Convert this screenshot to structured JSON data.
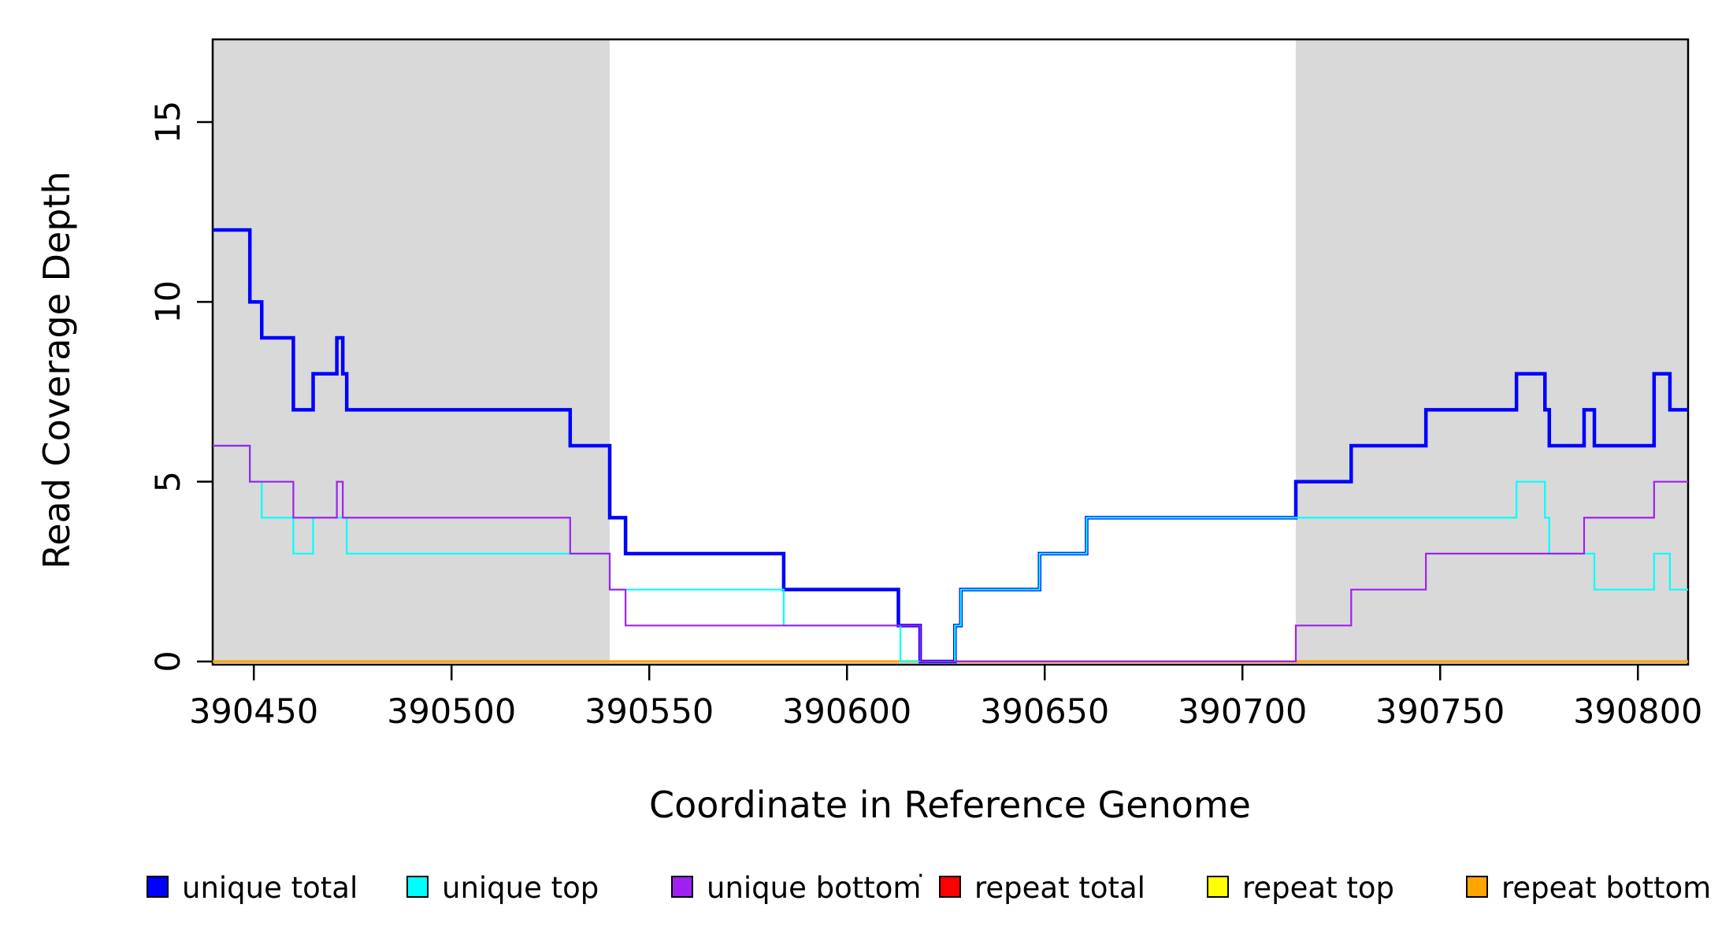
{
  "chart_data": {
    "type": "line",
    "subtype": "step-coverage-plot",
    "title": "",
    "xlabel": "Coordinate in Reference Genome",
    "ylabel": "Read Coverage Depth",
    "xlim": [
      390439.6,
      390812.7
    ],
    "ylim": [
      0,
      17.3
    ],
    "x_ticks": [
      390450,
      390500,
      390550,
      390600,
      390650,
      390700,
      390750,
      390800
    ],
    "y_ticks": [
      0,
      5,
      10,
      15
    ],
    "grid": false,
    "shaded_regions": [
      {
        "name": "repeat-region-left",
        "x0": 390439.6,
        "x1": 390540.0,
        "color": "#d9d9d9"
      },
      {
        "name": "repeat-region-right",
        "x0": 390713.5,
        "x1": 390812.7,
        "color": "#d9d9d9"
      }
    ],
    "series": [
      {
        "name": "repeat total",
        "color": "#ff0000",
        "width": 2.2,
        "points": [
          [
            390439.6,
            0
          ]
        ]
      },
      {
        "name": "repeat top",
        "color": "#ffff00",
        "width": 2.6,
        "points": [
          [
            390439.6,
            0
          ]
        ]
      },
      {
        "name": "repeat bottom",
        "color": "#ffa500",
        "width": 3.2,
        "points": [
          [
            390439.6,
            0
          ]
        ]
      },
      {
        "name": "unique total",
        "color": "#0000ff",
        "width": 4.5,
        "points": [
          [
            390439.6,
            12
          ],
          [
            390449,
            10
          ],
          [
            390452,
            9
          ],
          [
            390460,
            7
          ],
          [
            390465,
            8
          ],
          [
            390471,
            9
          ],
          [
            390472.5,
            8
          ],
          [
            390473.5,
            7
          ],
          [
            390530,
            6
          ],
          [
            390540,
            4
          ],
          [
            390544,
            3
          ],
          [
            390584,
            2
          ],
          [
            390613,
            1
          ],
          [
            390618.5,
            0
          ],
          [
            390627.3,
            1
          ],
          [
            390628.8,
            2
          ],
          [
            390648.7,
            3
          ],
          [
            390660.6,
            4
          ],
          [
            390713.5,
            5
          ],
          [
            390727.5,
            6
          ],
          [
            390746.4,
            7
          ],
          [
            390769.3,
            8
          ],
          [
            390776.5,
            7
          ],
          [
            390777.6,
            6
          ],
          [
            390786.4,
            7
          ],
          [
            390789,
            6
          ],
          [
            390804.1,
            8
          ],
          [
            390808.1,
            7
          ]
        ]
      },
      {
        "name": "unique top",
        "color": "#00ffff",
        "width": 2.2,
        "points": [
          [
            390439.6,
            6
          ],
          [
            390449,
            5
          ],
          [
            390452,
            4
          ],
          [
            390460,
            3
          ],
          [
            390465,
            4
          ],
          [
            390473.5,
            3
          ],
          [
            390540,
            2
          ],
          [
            390584,
            1
          ],
          [
            390613.5,
            0
          ],
          [
            390627.3,
            1
          ],
          [
            390628.8,
            2
          ],
          [
            390648.7,
            3
          ],
          [
            390660.6,
            4
          ],
          [
            390769.3,
            5
          ],
          [
            390776.5,
            4
          ],
          [
            390777.6,
            3
          ],
          [
            390789,
            2
          ],
          [
            390804.1,
            3
          ],
          [
            390808.1,
            2
          ]
        ]
      },
      {
        "name": "unique bottom",
        "color": "#a020f0",
        "width": 2.2,
        "points": [
          [
            390439.6,
            6
          ],
          [
            390449,
            5
          ],
          [
            390460,
            4
          ],
          [
            390471,
            5
          ],
          [
            390472.5,
            4
          ],
          [
            390530,
            3
          ],
          [
            390540,
            2
          ],
          [
            390544,
            1
          ],
          [
            390618.5,
            0
          ],
          [
            390713.5,
            1
          ],
          [
            390727.5,
            2
          ],
          [
            390746.4,
            3
          ],
          [
            390786.4,
            4
          ],
          [
            390804.1,
            5
          ]
        ]
      }
    ],
    "legend": {
      "position": "bottom",
      "items": [
        {
          "label": "unique total",
          "color": "#0000ff"
        },
        {
          "label": "unique top",
          "color": "#00ffff"
        },
        {
          "label": "unique bottom",
          "color": "#a020f0"
        },
        {
          "label": "repeat total",
          "color": "#ff0000"
        },
        {
          "label": "repeat top",
          "color": "#ffff00"
        },
        {
          "label": "repeat bottom",
          "color": "#ffa500"
        }
      ],
      "stray_dot": "·"
    },
    "axis_color": "#000000",
    "background_color": "#ffffff"
  }
}
